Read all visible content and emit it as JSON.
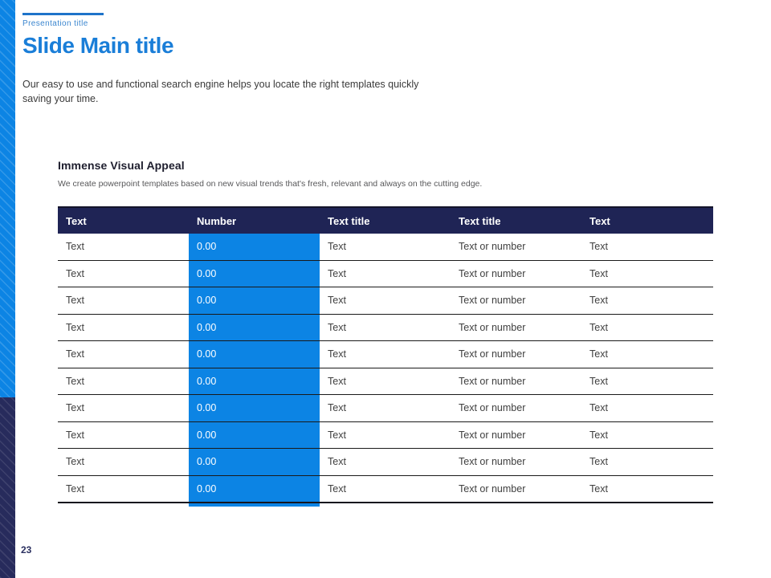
{
  "page": {
    "eyebrow": "Presentation title",
    "title": "Slide Main title",
    "body_line1": "Our easy to use and functional search engine helps you locate the right templates quickly",
    "body_line2": "saving your time.",
    "page_number": "23"
  },
  "section": {
    "heading": "Immense Visual Appeal",
    "subtext": "We create powerpoint templates based on new visual trends that's fresh, relevant and always on the cutting edge."
  },
  "table": {
    "headers": [
      "Text",
      "Number",
      "Text title",
      "Text title",
      "Text"
    ],
    "highlight_column_index": 1,
    "rows": [
      [
        "Text",
        "0.00",
        "Text",
        "Text or number",
        "Text"
      ],
      [
        "Text",
        "0.00",
        "Text",
        "Text or number",
        "Text"
      ],
      [
        "Text",
        "0.00",
        "Text",
        "Text or number",
        "Text"
      ],
      [
        "Text",
        "0.00",
        "Text",
        "Text or number",
        "Text"
      ],
      [
        "Text",
        "0.00",
        "Text",
        "Text or number",
        "Text"
      ],
      [
        "Text",
        "0.00",
        "Text",
        "Text or number",
        "Text"
      ],
      [
        "Text",
        "0.00",
        "Text",
        "Text or number",
        "Text"
      ],
      [
        "Text",
        "0.00",
        "Text",
        "Text or number",
        "Text"
      ],
      [
        "Text",
        "0.00",
        "Text",
        "Text or number",
        "Text"
      ],
      [
        "Text",
        "0.00",
        "Text",
        "Text or number",
        "Text"
      ]
    ]
  },
  "colors": {
    "accent_blue": "#0c84e4",
    "title_blue": "#1a7ed8",
    "header_navy": "#1f2455",
    "stripe_navy": "#272b5c"
  }
}
